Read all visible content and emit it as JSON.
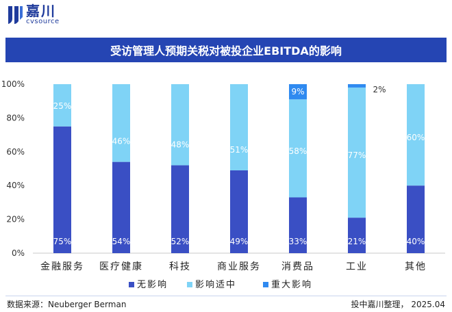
{
  "brand": {
    "name_cn": "嘉川",
    "name_en": "cvsource"
  },
  "colors": {
    "none": "#3a4fc4",
    "moderate": "#7fd3f6",
    "major": "#2f8af0",
    "title_bg": "#2545b3"
  },
  "chart_data": {
    "type": "bar",
    "stacked": true,
    "title": "受访管理人预期关税对被投企业EBITDA的影响",
    "categories": [
      "金融服务",
      "医疗健康",
      "科技",
      "商业服务",
      "消费品",
      "工业",
      "其他"
    ],
    "series": [
      {
        "name": "无影响",
        "values": [
          75,
          54,
          52,
          49,
          33,
          21,
          40
        ],
        "labels": [
          "75%",
          "54%",
          "52%",
          "49%",
          "33%",
          "21%",
          "40%"
        ]
      },
      {
        "name": "影响适中",
        "values": [
          25,
          46,
          48,
          51,
          58,
          77,
          60
        ],
        "labels": [
          "25%",
          "46%",
          "48%",
          "51%",
          "58%",
          "77%",
          "60%"
        ]
      },
      {
        "name": "重大影响",
        "values": [
          0,
          0,
          0,
          0,
          9,
          2,
          0
        ],
        "labels": [
          "",
          "",
          "",
          "",
          "9%",
          "2%",
          ""
        ]
      }
    ],
    "yticks": [
      "0%",
      "20%",
      "40%",
      "60%",
      "80%",
      "100%"
    ],
    "ylim": [
      0,
      100
    ],
    "legend_position": "bottom"
  },
  "footer": {
    "source": "数据来源：Neuberger Berman",
    "credit": "投中嘉川整理，  2025.04"
  }
}
